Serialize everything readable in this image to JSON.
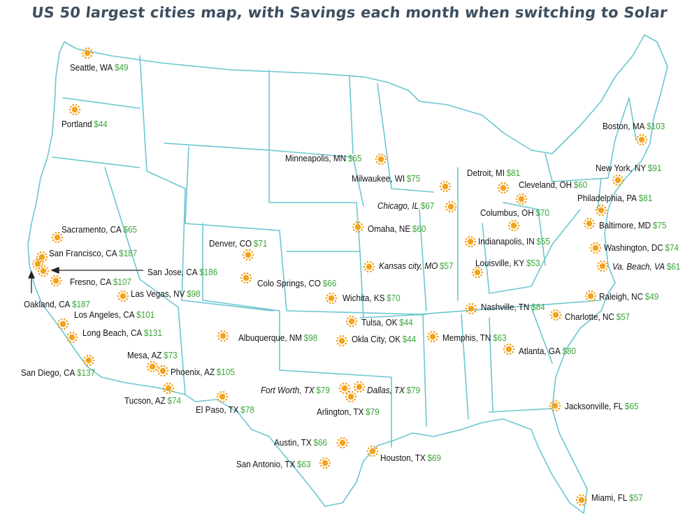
{
  "title": "US 50 largest cities map, with Savings each month when switching to Solar",
  "colors": {
    "border": "#6cc6d1",
    "sun": "#f3a21c",
    "amount": "#3aa537",
    "title": "#3d4f60"
  },
  "marker_icon": "sun-icon",
  "cities": [
    {
      "name": "Seattle, WA",
      "amount": "$49",
      "italic": false
    },
    {
      "name": "Portland",
      "amount": "$44",
      "italic": false
    },
    {
      "name": "Sacramento, CA",
      "amount": "$65",
      "italic": false
    },
    {
      "name": "San Francisco, CA",
      "amount": "$187",
      "italic": false
    },
    {
      "name": "San Jose, CA",
      "amount": "$186",
      "italic": false
    },
    {
      "name": "Fresno, CA",
      "amount": "$107",
      "italic": false
    },
    {
      "name": "Oakland, CA",
      "amount": "$187",
      "italic": false
    },
    {
      "name": "Las Vegas, NV",
      "amount": "$98",
      "italic": false
    },
    {
      "name": "Los Angeles, CA",
      "amount": "$101",
      "italic": false
    },
    {
      "name": "Long Beach, CA",
      "amount": "$131",
      "italic": false
    },
    {
      "name": "San Diego, CA",
      "amount": "$137",
      "italic": false
    },
    {
      "name": "Mesa, AZ",
      "amount": "$73",
      "italic": false
    },
    {
      "name": "Phoenix, AZ",
      "amount": "$105",
      "italic": false
    },
    {
      "name": "Tucson, AZ",
      "amount": "$74",
      "italic": false
    },
    {
      "name": "El Paso, TX",
      "amount": "$78",
      "italic": false
    },
    {
      "name": "Denver, CO",
      "amount": "$71",
      "italic": false
    },
    {
      "name": "Colo Springs, CO",
      "amount": "$66",
      "italic": false
    },
    {
      "name": "Albuquerque, NM",
      "amount": "$98",
      "italic": false
    },
    {
      "name": "Minneapolis, MN",
      "amount": "$65",
      "italic": false
    },
    {
      "name": "Milwaukee, WI",
      "amount": "$75",
      "italic": false
    },
    {
      "name": "Chicago, IL",
      "amount": "$67",
      "italic": true
    },
    {
      "name": "Omaha, NE",
      "amount": "$60",
      "italic": false
    },
    {
      "name": "Kansas city, MO",
      "amount": "$57",
      "italic": true
    },
    {
      "name": "Wichita, KS",
      "amount": "$70",
      "italic": false
    },
    {
      "name": "Tulsa, OK",
      "amount": "$44",
      "italic": false
    },
    {
      "name": "Okla City, OK",
      "amount": "$44",
      "italic": false
    },
    {
      "name": "Fort Worth, TX",
      "amount": "$79",
      "italic": true
    },
    {
      "name": "Dallas, TX",
      "amount": "$79",
      "italic": true
    },
    {
      "name": "Arlington, TX",
      "amount": "$79",
      "italic": false
    },
    {
      "name": "Austin, TX",
      "amount": "$66",
      "italic": false
    },
    {
      "name": "San Antonio, TX",
      "amount": "$63",
      "italic": false
    },
    {
      "name": "Houston, TX",
      "amount": "$69",
      "italic": false
    },
    {
      "name": "Detroit, MI",
      "amount": "$81",
      "italic": false
    },
    {
      "name": "Cleveland, OH",
      "amount": "$60",
      "italic": false
    },
    {
      "name": "Columbus, OH",
      "amount": "$70",
      "italic": false
    },
    {
      "name": "Indianapolis, IN",
      "amount": "$55",
      "italic": false
    },
    {
      "name": "Louisville, KY",
      "amount": "$53",
      "italic": false
    },
    {
      "name": "Nashville, TN",
      "amount": "$84",
      "italic": false
    },
    {
      "name": "Memphis, TN",
      "amount": "$63",
      "italic": false
    },
    {
      "name": "Atlanta, GA",
      "amount": "$80",
      "italic": false
    },
    {
      "name": "Charlotte, NC",
      "amount": "$57",
      "italic": false
    },
    {
      "name": "Raleigh, NC",
      "amount": "$49",
      "italic": false
    },
    {
      "name": "Jacksonville, FL",
      "amount": "$65",
      "italic": false
    },
    {
      "name": "Miami, FL",
      "amount": "$57",
      "italic": false
    },
    {
      "name": "Boston, MA",
      "amount": "$103",
      "italic": false
    },
    {
      "name": "New York, NY",
      "amount": "$91",
      "italic": false
    },
    {
      "name": "Philadelphia, PA",
      "amount": "$81",
      "italic": false
    },
    {
      "name": "Baltimore, MD",
      "amount": "$75",
      "italic": false
    },
    {
      "name": "Washington, DC",
      "amount": "$74",
      "italic": false
    },
    {
      "name": "Va. Beach, VA",
      "amount": "$61",
      "italic": true
    }
  ]
}
